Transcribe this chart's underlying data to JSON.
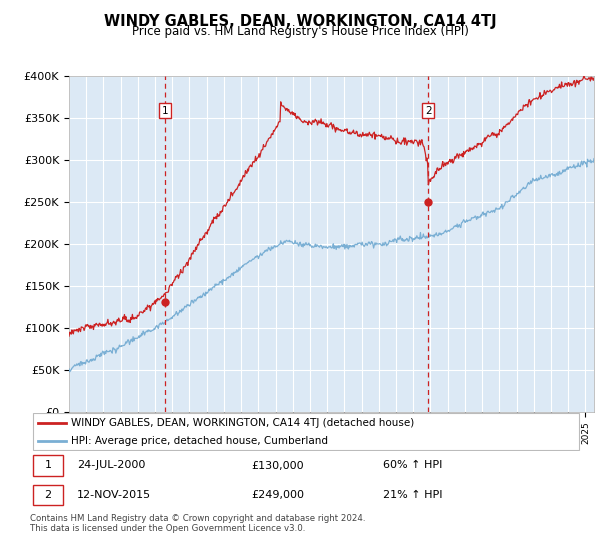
{
  "title": "WINDY GABLES, DEAN, WORKINGTON, CA14 4TJ",
  "subtitle": "Price paid vs. HM Land Registry's House Price Index (HPI)",
  "ylim": [
    0,
    400000
  ],
  "yticks": [
    0,
    50000,
    100000,
    150000,
    200000,
    250000,
    300000,
    350000,
    400000
  ],
  "ytick_labels": [
    "£0",
    "£50K",
    "£100K",
    "£150K",
    "£200K",
    "£250K",
    "£300K",
    "£350K",
    "£400K"
  ],
  "sale1_date": 2000.56,
  "sale1_price": 130000,
  "sale2_date": 2015.87,
  "sale2_price": 249000,
  "red_line_color": "#cc2222",
  "blue_line_color": "#7aafd4",
  "background_color": "#dce9f5",
  "grid_color": "#ffffff",
  "marker_box_color": "#cc2222",
  "legend_line1": "WINDY GABLES, DEAN, WORKINGTON, CA14 4TJ (detached house)",
  "legend_line2": "HPI: Average price, detached house, Cumberland",
  "table_row1_date": "24-JUL-2000",
  "table_row1_price": "£130,000",
  "table_row1_hpi": "60% ↑ HPI",
  "table_row2_date": "12-NOV-2015",
  "table_row2_price": "£249,000",
  "table_row2_hpi": "21% ↑ HPI",
  "footnote": "Contains HM Land Registry data © Crown copyright and database right 2024.\nThis data is licensed under the Open Government Licence v3.0.",
  "xmin": 1995.0,
  "xmax": 2025.5
}
